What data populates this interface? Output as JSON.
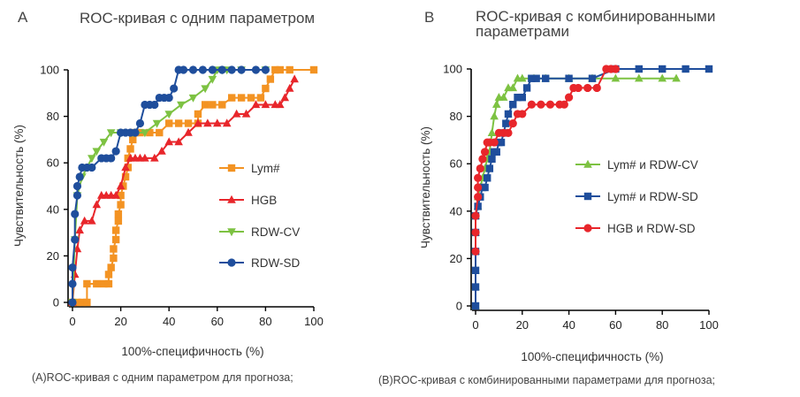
{
  "figure": {
    "caption_a": "(A)ROC-кривая с одним параметром для прогноза;",
    "caption_b": "(B)ROC-кривая с комбинированными параметрами для прогноза;"
  },
  "colors": {
    "orange": "#F39323",
    "red": "#E8262B",
    "green": "#7DC242",
    "blue": "#1F4E9C",
    "axis": "#000000",
    "title": "#444444"
  },
  "chart_data": [
    {
      "panel": "A",
      "type": "line",
      "title": "ROC-кривая с одним параметром",
      "xlabel": "100%-специфичность (%)",
      "ylabel": "Чувствительность (%)",
      "xlim": [
        0,
        100
      ],
      "ylim": [
        0,
        100
      ],
      "xticks": [
        0,
        20,
        40,
        60,
        80,
        100
      ],
      "yticks": [
        0,
        20,
        40,
        60,
        80,
        100
      ],
      "legend_position": "right",
      "series": [
        {
          "name": "Lym#",
          "color": "#F39323",
          "marker": "square",
          "x": [
            0,
            2,
            4,
            6,
            6,
            10,
            13,
            15,
            15,
            16,
            17,
            17,
            18,
            18,
            19,
            19,
            20,
            20,
            21,
            22,
            23,
            23,
            24,
            25,
            26,
            28,
            32,
            36,
            40,
            44,
            48,
            52,
            52,
            55,
            58,
            62,
            66,
            70,
            74,
            78,
            80,
            82,
            84,
            86,
            90,
            100
          ],
          "y": [
            0,
            0,
            0,
            0,
            8,
            8,
            8,
            8,
            12,
            15,
            19,
            23,
            27,
            31,
            35,
            38,
            42,
            46,
            50,
            54,
            58,
            62,
            66,
            70,
            73,
            73,
            73,
            73,
            77,
            77,
            77,
            77,
            81,
            85,
            85,
            85,
            88,
            88,
            88,
            88,
            92,
            96,
            100,
            100,
            100,
            100
          ]
        },
        {
          "name": "HGB",
          "color": "#E8262B",
          "marker": "triangle",
          "x": [
            0,
            1,
            2,
            3,
            5,
            8,
            10,
            12,
            14,
            16,
            18,
            20,
            22,
            24,
            26,
            28,
            30,
            34,
            37,
            40,
            44,
            48,
            52,
            56,
            60,
            64,
            68,
            72,
            76,
            80,
            84,
            86,
            88,
            90,
            92
          ],
          "y": [
            0,
            12,
            23,
            31,
            35,
            35,
            42,
            46,
            46,
            46,
            46,
            50,
            58,
            62,
            62,
            62,
            62,
            62,
            65,
            69,
            69,
            73,
            77,
            77,
            77,
            77,
            81,
            81,
            85,
            85,
            85,
            85,
            88,
            92,
            96
          ]
        },
        {
          "name": "RDW-CV",
          "color": "#7DC242",
          "marker": "triangle-down",
          "x": [
            0,
            1,
            2,
            4,
            6,
            8,
            10,
            13,
            16,
            20,
            25,
            30,
            35,
            40,
            45,
            50,
            55,
            58,
            60,
            62,
            64,
            70,
            80
          ],
          "y": [
            0,
            27,
            46,
            54,
            58,
            62,
            65,
            69,
            73,
            73,
            73,
            73,
            77,
            81,
            85,
            88,
            92,
            96,
            100,
            100,
            100,
            100,
            100
          ]
        },
        {
          "name": "RDW-SD",
          "color": "#1F4E9C",
          "marker": "circle",
          "x": [
            0,
            0,
            0,
            1,
            1,
            2,
            2,
            3,
            4,
            6,
            8,
            12,
            14,
            16,
            18,
            20,
            22,
            24,
            26,
            28,
            30,
            32,
            34,
            36,
            38,
            40,
            42,
            44,
            46,
            50,
            54,
            58,
            62,
            66,
            70,
            76,
            80
          ],
          "y": [
            0,
            8,
            15,
            27,
            38,
            46,
            50,
            54,
            58,
            58,
            58,
            62,
            62,
            62,
            65,
            73,
            73,
            73,
            73,
            77,
            85,
            85,
            85,
            88,
            88,
            88,
            92,
            100,
            100,
            100,
            100,
            100,
            100,
            100,
            100,
            100,
            100
          ]
        }
      ]
    },
    {
      "panel": "B",
      "type": "line",
      "title": "ROC-кривая с комбинированными параметрами",
      "xlabel": "100%-специфичность (%)",
      "ylabel": "Чувствительность (%)",
      "xlim": [
        0,
        100
      ],
      "ylim": [
        0,
        100
      ],
      "xticks": [
        0,
        20,
        40,
        60,
        80,
        100
      ],
      "yticks": [
        0,
        20,
        40,
        60,
        80,
        100
      ],
      "legend_position": "right",
      "series": [
        {
          "name": "Lym# и RDW-CV",
          "color": "#7DC242",
          "marker": "triangle",
          "x": [
            0,
            0,
            0,
            0,
            0,
            0,
            1,
            1,
            2,
            3,
            4,
            5,
            6,
            7,
            8,
            9,
            10,
            12,
            14,
            16,
            18,
            20,
            25,
            30,
            40,
            50,
            60,
            70,
            80,
            86
          ],
          "y": [
            0,
            8,
            15,
            23,
            31,
            38,
            42,
            46,
            50,
            54,
            58,
            62,
            65,
            73,
            80,
            85,
            88,
            88,
            92,
            92,
            96,
            96,
            96,
            96,
            96,
            96,
            96,
            96,
            96,
            96
          ]
        },
        {
          "name": "Lym# и RDW-SD",
          "color": "#1F4E9C",
          "marker": "square",
          "x": [
            0,
            0,
            0,
            0,
            0,
            0,
            1,
            2,
            3,
            4,
            5,
            6,
            7,
            8,
            9,
            10,
            11,
            12,
            13,
            14,
            16,
            18,
            20,
            22,
            24,
            26,
            30,
            40,
            50,
            60,
            70,
            80,
            90,
            100
          ],
          "y": [
            0,
            8,
            15,
            23,
            31,
            38,
            42,
            46,
            50,
            50,
            54,
            58,
            62,
            65,
            65,
            69,
            69,
            73,
            77,
            81,
            85,
            88,
            88,
            92,
            96,
            96,
            96,
            96,
            96,
            100,
            100,
            100,
            100,
            100
          ]
        },
        {
          "name": "HGB и RDW-SD",
          "color": "#E8262B",
          "marker": "circle",
          "x": [
            0,
            0,
            0,
            1,
            1,
            1,
            2,
            3,
            4,
            5,
            6,
            8,
            10,
            12,
            14,
            16,
            18,
            20,
            24,
            28,
            32,
            36,
            38,
            40,
            42,
            44,
            48,
            52,
            56,
            58,
            60
          ],
          "y": [
            23,
            31,
            38,
            46,
            50,
            54,
            58,
            62,
            65,
            69,
            69,
            69,
            73,
            73,
            73,
            77,
            81,
            81,
            85,
            85,
            85,
            85,
            85,
            88,
            92,
            92,
            92,
            92,
            100,
            100,
            100
          ]
        }
      ]
    }
  ]
}
